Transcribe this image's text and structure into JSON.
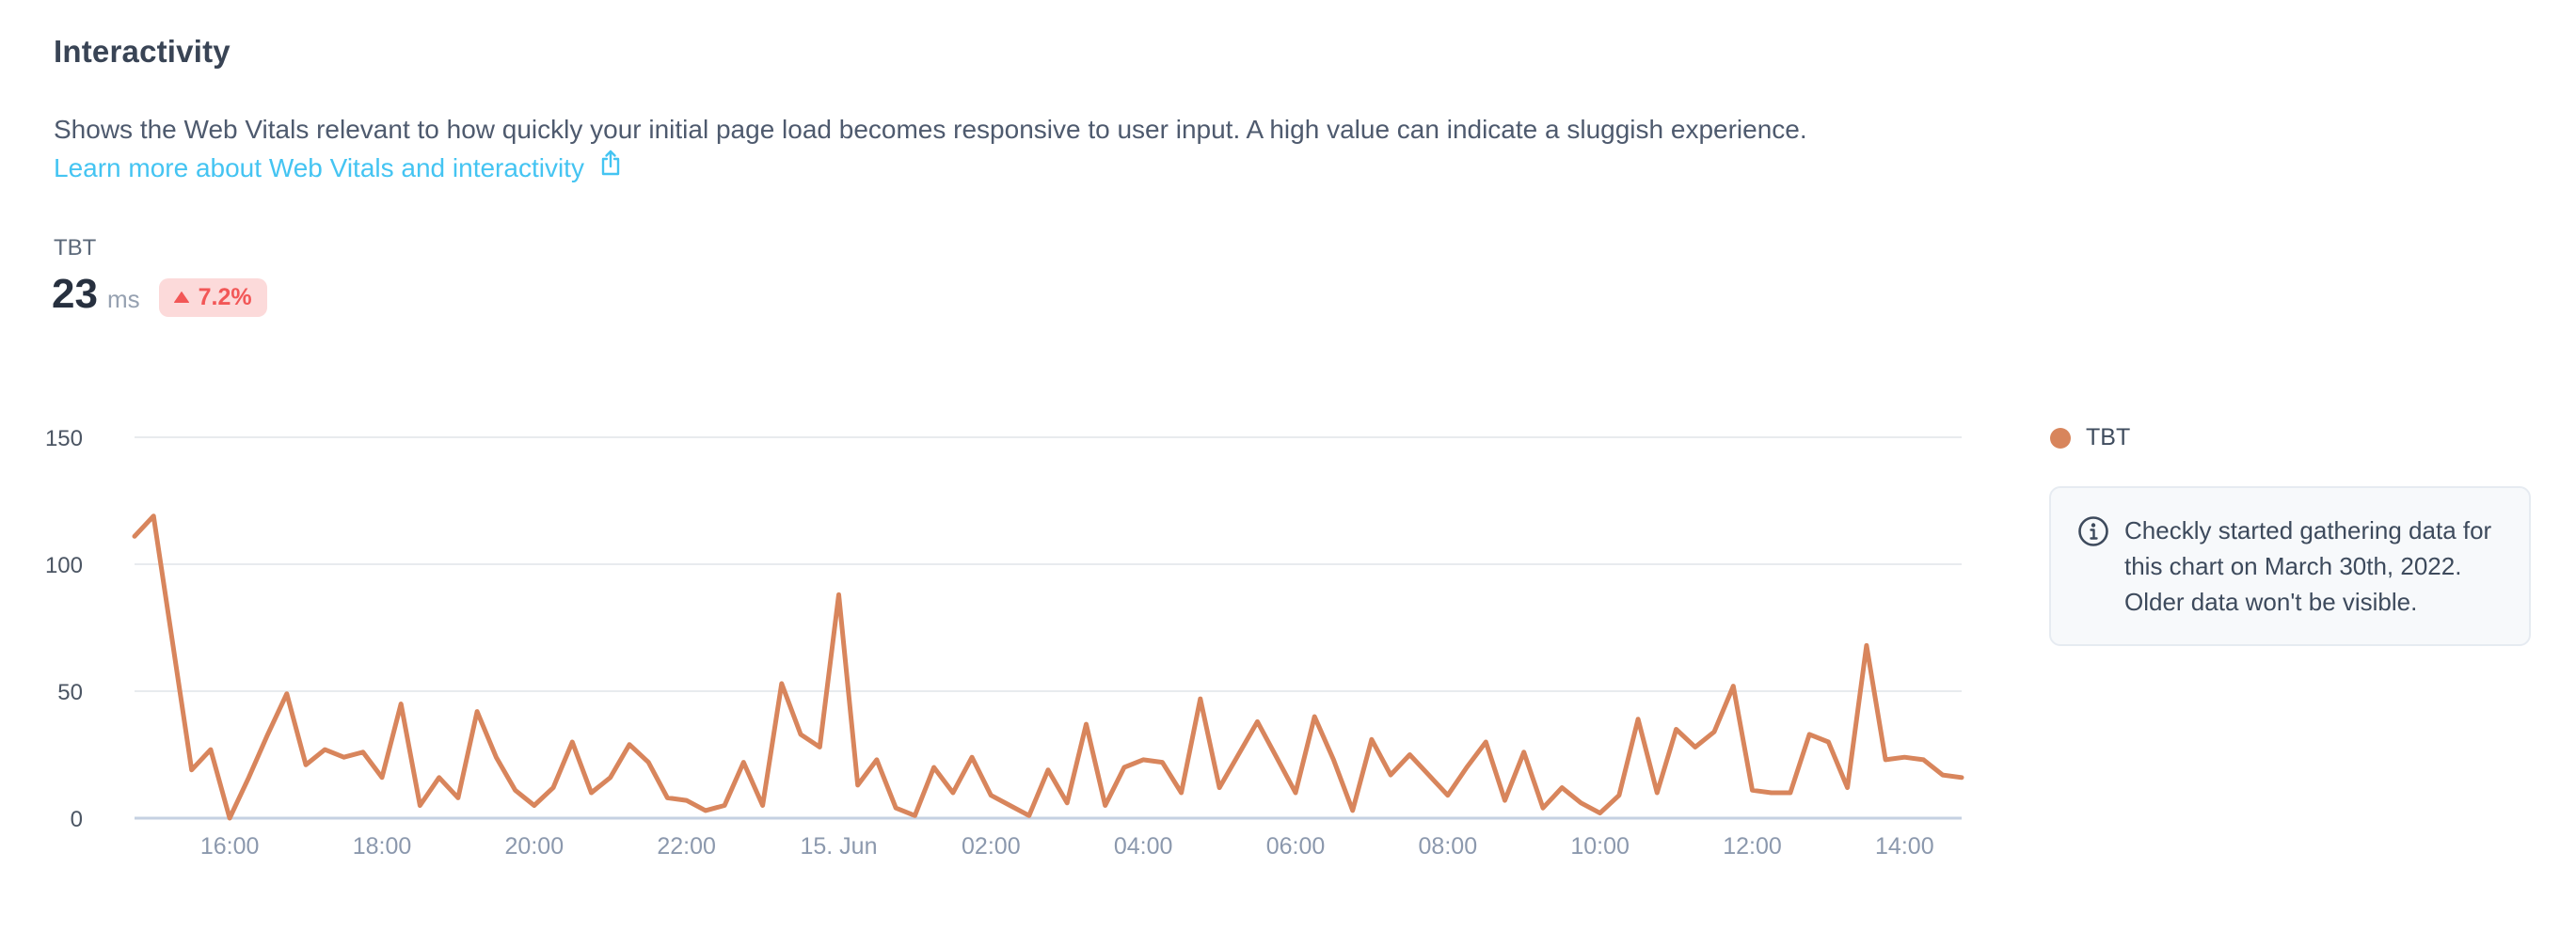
{
  "header": {
    "title": "Interactivity",
    "description": "Shows the Web Vitals relevant to how quickly your initial page load becomes responsive to user input. A high value can indicate a sluggish experience.",
    "link_label": "Learn more about Web Vitals and interactivity"
  },
  "metric": {
    "label": "TBT",
    "value": "23",
    "unit": "ms",
    "delta": "7.2%",
    "delta_direction": "up"
  },
  "legend": {
    "label": "TBT"
  },
  "note": {
    "text": "Checkly started gathering data for this chart on March 30th, 2022. Older data won't be visible."
  },
  "colors": {
    "series": "#d8855c",
    "link": "#44c4f2",
    "delta_bg": "#fcdada",
    "delta_text": "#f25757",
    "grid": "#e8ebee",
    "axis_zero_line": "#c5d1e2",
    "x_label": "#8b98ad",
    "y_label": "#4b5563"
  },
  "chart_data": {
    "type": "line",
    "series": [
      {
        "name": "TBT",
        "unit": "ms",
        "values": [
          111,
          119,
          69,
          19,
          27,
          0,
          16,
          33,
          49,
          21,
          27,
          24,
          26,
          16,
          45,
          5,
          16,
          8,
          42,
          24,
          11,
          5,
          12,
          30,
          10,
          16,
          29,
          22,
          8,
          7,
          3,
          5,
          22,
          5,
          53,
          33,
          28,
          88,
          13,
          23,
          4,
          1,
          20,
          10,
          24,
          9,
          5,
          1,
          19,
          6,
          37,
          5,
          20,
          23,
          22,
          10,
          47,
          12,
          25,
          38,
          24,
          10,
          40,
          23,
          3,
          31,
          17,
          25,
          17,
          9,
          20,
          30,
          7,
          26,
          4,
          12,
          6,
          2,
          9,
          39,
          10,
          35,
          28,
          34,
          52,
          11,
          10,
          10,
          33,
          30,
          12,
          68,
          23,
          24,
          23,
          17,
          16
        ]
      }
    ],
    "x_start": "Jun 14 14:45",
    "x_interval_minutes": 15,
    "x_tick_labels": [
      "16:00",
      "18:00",
      "20:00",
      "22:00",
      "15. Jun",
      "02:00",
      "04:00",
      "06:00",
      "08:00",
      "10:00",
      "12:00",
      "14:00"
    ],
    "x_tick_indices": [
      5,
      13,
      21,
      29,
      37,
      45,
      53,
      61,
      69,
      77,
      85,
      93
    ],
    "yticks": [
      0,
      50,
      100,
      150
    ],
    "ylim": [
      0,
      150
    ],
    "grid": "horizontal",
    "legend_position": "right"
  }
}
